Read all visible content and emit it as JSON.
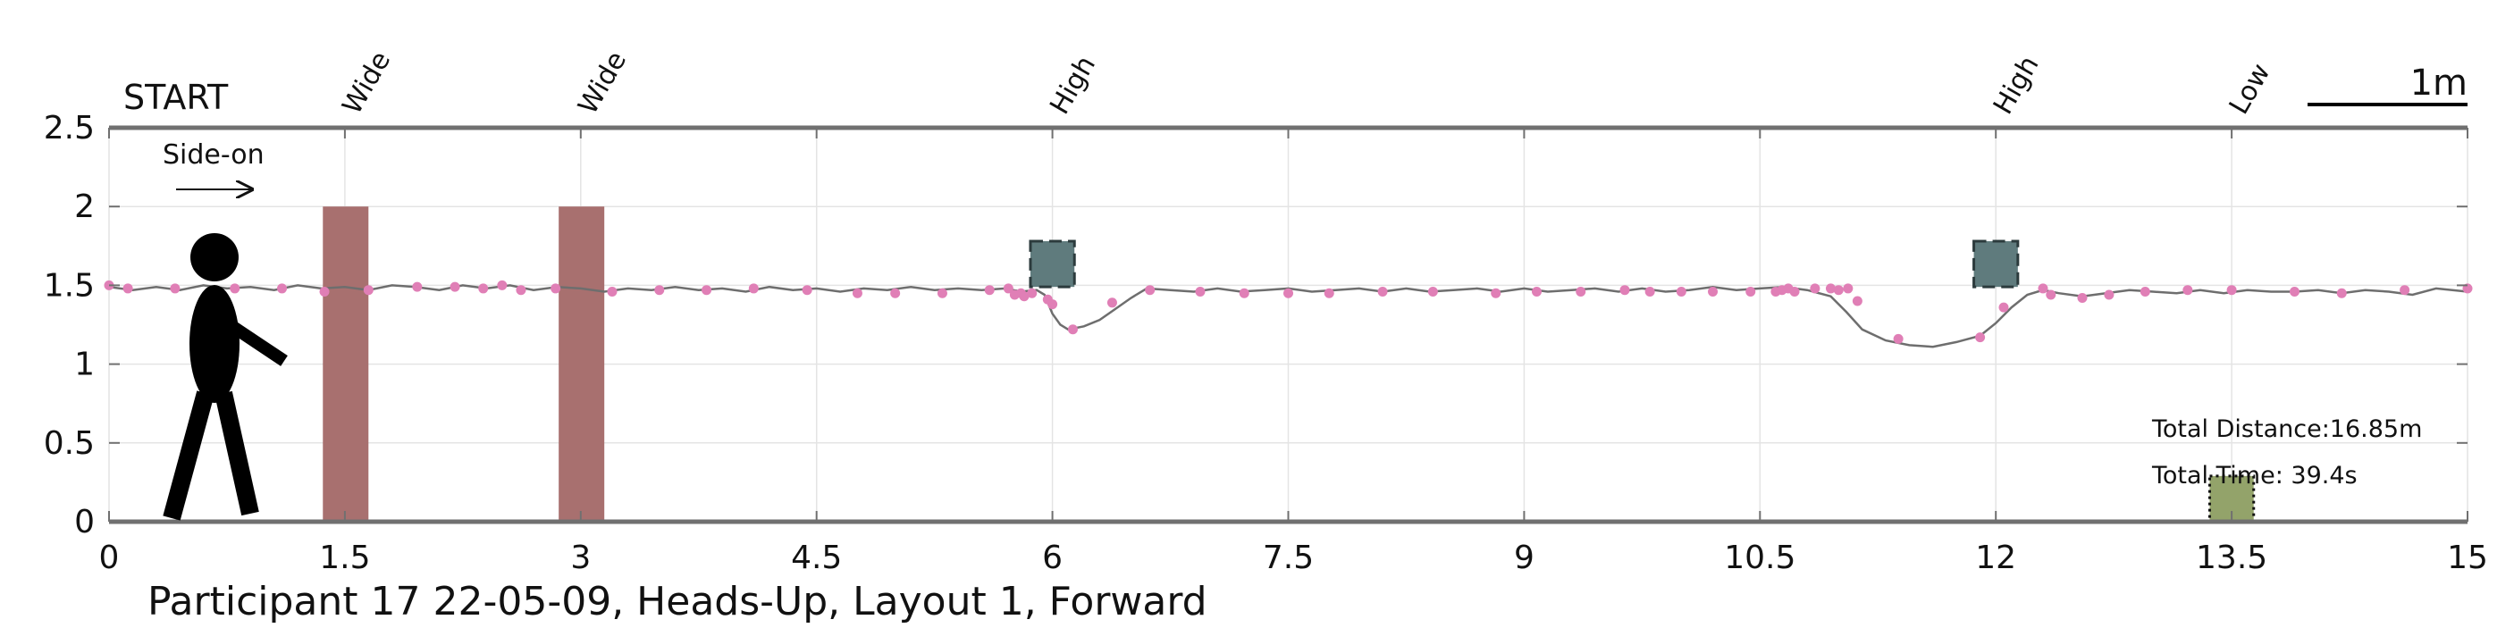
{
  "chart_data": {
    "type": "scatter",
    "caption": "Participant 17 22-05-09, Heads-Up, Layout 1, Forward",
    "start_label": "START",
    "direction_label": "Side-on",
    "scale_label": "1m",
    "xlim": [
      0,
      15
    ],
    "ylim": [
      0,
      2.5
    ],
    "x_ticks": [
      0,
      1.5,
      3,
      4.5,
      6,
      7.5,
      9,
      10.5,
      12,
      13.5,
      15
    ],
    "x_tick_labels": [
      "0",
      "1.5",
      "3",
      "4.5",
      "6",
      "7.5",
      "9",
      "10.5",
      "12",
      "13.5",
      "15"
    ],
    "y_ticks": [
      0,
      0.5,
      1,
      1.5,
      2,
      2.5
    ],
    "y_tick_labels": [
      "0",
      "0.5",
      "1",
      "1.5",
      "2",
      "2.5"
    ],
    "grid": true,
    "obstacle_labels": [
      {
        "x": 1.5,
        "text": "Wide"
      },
      {
        "x": 3.0,
        "text": "Wide"
      },
      {
        "x": 6.0,
        "text": "High"
      },
      {
        "x": 12.0,
        "text": "High"
      },
      {
        "x": 13.5,
        "text": "Low"
      }
    ],
    "obstacles": [
      {
        "kind": "wide",
        "x0": 1.36,
        "x1": 1.65,
        "y0": 0,
        "y1": 2.0,
        "color": "#a8706f"
      },
      {
        "kind": "wide",
        "x0": 2.86,
        "x1": 3.15,
        "y0": 0,
        "y1": 2.0,
        "color": "#a8706f"
      },
      {
        "kind": "high",
        "x0": 5.86,
        "x1": 6.14,
        "y0": 1.49,
        "y1": 1.78,
        "color": "#5f7b7d"
      },
      {
        "kind": "high",
        "x0": 11.86,
        "x1": 12.14,
        "y0": 1.49,
        "y1": 1.78,
        "color": "#5f7b7d"
      },
      {
        "kind": "low",
        "x0": 13.36,
        "x1": 13.64,
        "y0": 0,
        "y1": 0.29,
        "color": "#93a36a"
      }
    ],
    "path": {
      "x": [
        0,
        0.15,
        0.3,
        0.45,
        0.6,
        0.75,
        0.9,
        1.05,
        1.2,
        1.35,
        1.5,
        1.65,
        1.8,
        1.95,
        2.1,
        2.25,
        2.4,
        2.55,
        2.7,
        2.85,
        3.0,
        3.15,
        3.3,
        3.45,
        3.6,
        3.75,
        3.9,
        4.05,
        4.2,
        4.35,
        4.5,
        4.65,
        4.8,
        4.95,
        5.1,
        5.25,
        5.4,
        5.55,
        5.7,
        5.8,
        5.9,
        5.95,
        6.0,
        6.05,
        6.1,
        6.2,
        6.3,
        6.4,
        6.5,
        6.6,
        6.75,
        6.9,
        7.05,
        7.2,
        7.35,
        7.5,
        7.65,
        7.8,
        7.95,
        8.1,
        8.25,
        8.4,
        8.55,
        8.7,
        8.85,
        9.0,
        9.15,
        9.3,
        9.45,
        9.6,
        9.75,
        9.9,
        10.05,
        10.2,
        10.35,
        10.5,
        10.65,
        10.8,
        10.95,
        11.05,
        11.15,
        11.3,
        11.45,
        11.6,
        11.75,
        11.9,
        12.0,
        12.1,
        12.2,
        12.3,
        12.4,
        12.55,
        12.7,
        12.85,
        13.0,
        13.15,
        13.3,
        13.45,
        13.6,
        13.75,
        13.9,
        14.05,
        14.2,
        14.35,
        14.5,
        14.65,
        14.8,
        15.0
      ],
      "y": [
        1.49,
        1.47,
        1.49,
        1.47,
        1.5,
        1.48,
        1.49,
        1.47,
        1.5,
        1.48,
        1.49,
        1.47,
        1.5,
        1.49,
        1.47,
        1.5,
        1.48,
        1.5,
        1.47,
        1.49,
        1.48,
        1.46,
        1.48,
        1.47,
        1.49,
        1.47,
        1.48,
        1.46,
        1.49,
        1.47,
        1.48,
        1.46,
        1.48,
        1.47,
        1.49,
        1.47,
        1.48,
        1.47,
        1.48,
        1.46,
        1.47,
        1.44,
        1.32,
        1.25,
        1.22,
        1.24,
        1.28,
        1.35,
        1.42,
        1.48,
        1.47,
        1.46,
        1.48,
        1.46,
        1.47,
        1.48,
        1.46,
        1.47,
        1.48,
        1.46,
        1.48,
        1.46,
        1.47,
        1.48,
        1.46,
        1.48,
        1.46,
        1.47,
        1.48,
        1.46,
        1.48,
        1.46,
        1.47,
        1.49,
        1.47,
        1.48,
        1.49,
        1.47,
        1.43,
        1.33,
        1.22,
        1.15,
        1.12,
        1.11,
        1.14,
        1.18,
        1.26,
        1.36,
        1.44,
        1.47,
        1.45,
        1.43,
        1.45,
        1.47,
        1.46,
        1.45,
        1.47,
        1.45,
        1.47,
        1.46,
        1.46,
        1.47,
        1.45,
        1.47,
        1.46,
        1.44,
        1.48,
        1.46
      ]
    },
    "footsteps": {
      "x": [
        0.0,
        0.12,
        0.42,
        0.8,
        1.1,
        1.37,
        1.65,
        1.96,
        2.2,
        2.38,
        2.5,
        2.62,
        2.84,
        3.2,
        3.5,
        3.8,
        4.1,
        4.44,
        4.76,
        5.0,
        5.3,
        5.6,
        5.72,
        5.76,
        5.8,
        5.82,
        5.87,
        5.97,
        6.0,
        6.13,
        6.38,
        6.62,
        6.94,
        7.22,
        7.5,
        7.76,
        8.1,
        8.42,
        8.82,
        9.08,
        9.36,
        9.64,
        9.8,
        10.0,
        10.2,
        10.44,
        10.6,
        10.64,
        10.68,
        10.72,
        10.85,
        10.95,
        11.0,
        11.06,
        11.12,
        11.38,
        11.9,
        12.05,
        12.3,
        12.35,
        12.55,
        12.72,
        12.95,
        13.22,
        13.5,
        13.9,
        14.2,
        14.6,
        15.0
      ],
      "y": [
        1.5,
        1.48,
        1.48,
        1.48,
        1.48,
        1.46,
        1.47,
        1.49,
        1.49,
        1.48,
        1.5,
        1.47,
        1.48,
        1.46,
        1.47,
        1.47,
        1.48,
        1.47,
        1.45,
        1.45,
        1.45,
        1.47,
        1.48,
        1.44,
        1.45,
        1.43,
        1.45,
        1.41,
        1.38,
        1.22,
        1.39,
        1.47,
        1.46,
        1.45,
        1.45,
        1.45,
        1.46,
        1.46,
        1.45,
        1.46,
        1.46,
        1.47,
        1.46,
        1.46,
        1.46,
        1.46,
        1.46,
        1.47,
        1.48,
        1.46,
        1.48,
        1.48,
        1.47,
        1.48,
        1.4,
        1.16,
        1.17,
        1.36,
        1.48,
        1.44,
        1.42,
        1.44,
        1.46,
        1.47,
        1.47,
        1.46,
        1.45,
        1.47,
        1.48
      ]
    },
    "annotations": {
      "distance": "Total Distance:16.85m",
      "time": "Total Time: 39.4s"
    }
  }
}
